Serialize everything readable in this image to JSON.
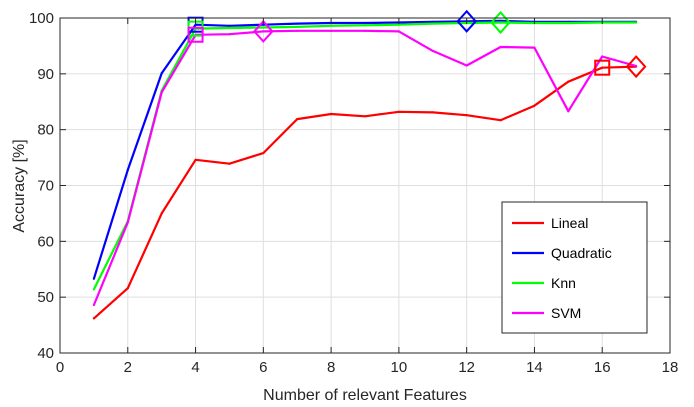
{
  "chart_data": {
    "type": "line",
    "title": "",
    "xlabel": "Number of relevant Features",
    "ylabel": "Accuracy [%]",
    "xlim": [
      0,
      18
    ],
    "ylim": [
      40,
      100
    ],
    "xticks": [
      0,
      2,
      4,
      6,
      8,
      10,
      12,
      14,
      16,
      18
    ],
    "yticks": [
      40,
      50,
      60,
      70,
      80,
      90,
      100
    ],
    "grid": true,
    "legend_position": "bottom-right",
    "x": [
      1,
      2,
      3,
      4,
      5,
      6,
      7,
      8,
      9,
      10,
      11,
      12,
      13,
      14,
      15,
      16,
      17
    ],
    "series": [
      {
        "name": "Lineal",
        "color": "#ff0000",
        "values": [
          46.2,
          51.6,
          65.0,
          74.6,
          73.9,
          75.8,
          81.9,
          82.8,
          82.4,
          83.2,
          83.1,
          82.6,
          81.7,
          84.3,
          88.6,
          91.1,
          91.3
        ],
        "markers": [
          {
            "x": 16,
            "y": 91.1,
            "shape": "square"
          },
          {
            "x": 17,
            "y": 91.3,
            "shape": "diamond"
          }
        ]
      },
      {
        "name": "Quadratic",
        "color": "#0000ff",
        "values": [
          53.3,
          72.8,
          90.1,
          98.8,
          98.6,
          98.8,
          99.0,
          99.1,
          99.1,
          99.2,
          99.3,
          99.4,
          99.5,
          99.3,
          99.3,
          99.3,
          99.3
        ],
        "markers": [
          {
            "x": 4,
            "y": 98.8,
            "shape": "square"
          },
          {
            "x": 12,
            "y": 99.4,
            "shape": "diamond"
          }
        ]
      },
      {
        "name": "Knn",
        "color": "#00ff00",
        "values": [
          51.4,
          63.6,
          87.0,
          98.1,
          98.2,
          98.3,
          98.4,
          98.6,
          98.7,
          98.8,
          99.0,
          99.1,
          99.2,
          99.1,
          99.1,
          99.2,
          99.2
        ],
        "markers": [
          {
            "x": 4,
            "y": 98.1,
            "shape": "square"
          },
          {
            "x": 13,
            "y": 99.2,
            "shape": "diamond"
          }
        ]
      },
      {
        "name": "SVM",
        "color": "#ff00ff",
        "values": [
          48.6,
          63.4,
          86.7,
          97.0,
          97.1,
          97.6,
          97.7,
          97.7,
          97.7,
          97.6,
          94.1,
          91.5,
          94.8,
          94.7,
          83.3,
          93.1,
          91.4
        ],
        "markers": [
          {
            "x": 4,
            "y": 97.0,
            "shape": "square"
          },
          {
            "x": 6,
            "y": 97.6,
            "shape": "diamond"
          }
        ]
      }
    ]
  }
}
